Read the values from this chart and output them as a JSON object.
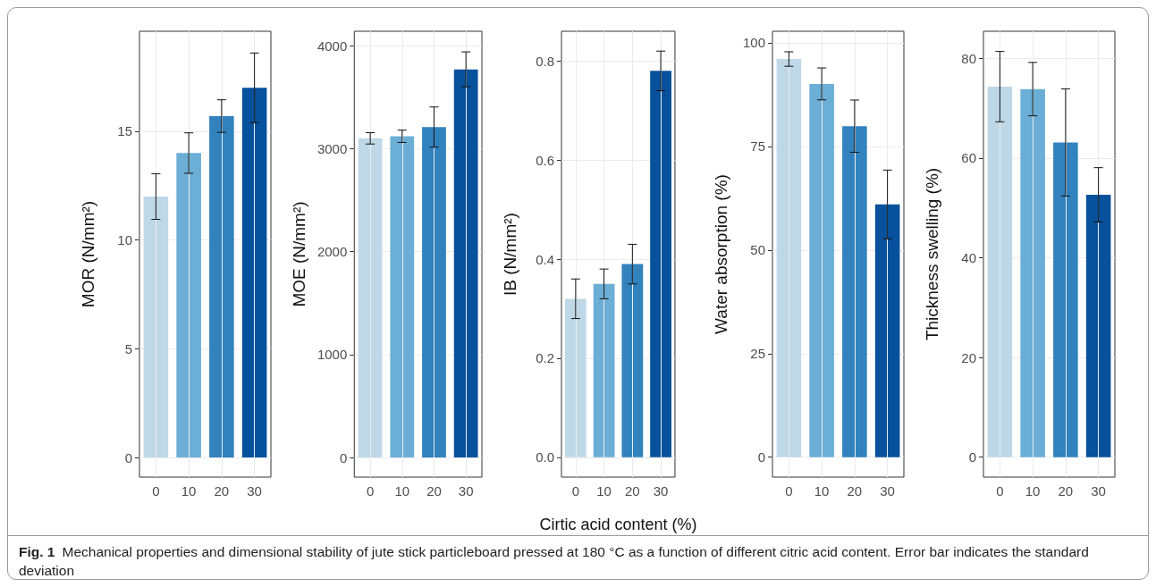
{
  "chart_data": [
    {
      "type": "bar",
      "ylabel": "MOR (N/mm²)",
      "categories": [
        "0",
        "10",
        "20",
        "30"
      ],
      "values": [
        12.0,
        14.0,
        15.7,
        17.0
      ],
      "errors": [
        1.05,
        0.93,
        0.75,
        1.6
      ],
      "colors": [
        "#bfd8e8",
        "#6baed6",
        "#3182bd",
        "#08519c"
      ],
      "ylim": [
        -0.9,
        19.6
      ],
      "yticks": [
        0,
        5,
        10,
        15
      ],
      "grid": true
    },
    {
      "type": "bar",
      "ylabel": "MOE (N/mm²)",
      "categories": [
        "0",
        "10",
        "20",
        "30"
      ],
      "values": [
        3100,
        3120,
        3210,
        3770
      ],
      "errors": [
        55,
        60,
        195,
        170
      ],
      "colors": [
        "#bfd8e8",
        "#6baed6",
        "#3182bd",
        "#08519c"
      ],
      "ylim": [
        -190,
        4140
      ],
      "yticks": [
        0,
        1000,
        2000,
        3000,
        4000
      ],
      "grid": true
    },
    {
      "type": "bar",
      "ylabel": "IB (N/mm²)",
      "xlabel": "Cirtic acid content (%)",
      "categories": [
        "0",
        "10",
        "20",
        "30"
      ],
      "values": [
        0.32,
        0.35,
        0.39,
        0.78
      ],
      "errors": [
        0.04,
        0.03,
        0.04,
        0.04
      ],
      "colors": [
        "#bfd8e8",
        "#6baed6",
        "#3182bd",
        "#08519c"
      ],
      "ylim": [
        -0.04,
        0.86
      ],
      "yticks": [
        {
          "value": 0,
          "label": "0.0"
        },
        0.2,
        0.4,
        0.6,
        0.8
      ],
      "grid": true,
      "annotations": [
        "Fig. 1",
        "Mechanical properties and dimensional stability of jute stick particleboard pressed at 180 °C as a function of different citric acid content. Error bar indicates the standard deviation"
      ]
    },
    {
      "type": "bar",
      "ylabel": "Water absorption (%)",
      "categories": [
        "0",
        "10",
        "20",
        "30"
      ],
      "values": [
        96.1,
        90.1,
        79.9,
        61.0
      ],
      "errors": [
        1.75,
        3.85,
        6.3,
        8.3
      ],
      "colors": [
        "#bfd8e8",
        "#6baed6",
        "#3182bd",
        "#08519c"
      ],
      "ylim": [
        -4.8,
        102.8
      ],
      "yticks": [
        0,
        25,
        50,
        75,
        100
      ],
      "grid": true
    },
    {
      "type": "bar",
      "ylabel": "Thickness swelling (%)",
      "categories": [
        "0",
        "10",
        "20",
        "30"
      ],
      "values": [
        74.3,
        73.8,
        63.1,
        52.6
      ],
      "errors": [
        7.05,
        5.35,
        10.75,
        5.45
      ],
      "colors": [
        "#bfd8e8",
        "#6baed6",
        "#3182bd",
        "#08519c"
      ],
      "ylim": [
        -4.0,
        85.4
      ],
      "yticks": [
        0,
        20,
        40,
        60,
        80
      ],
      "grid": true
    }
  ]
}
